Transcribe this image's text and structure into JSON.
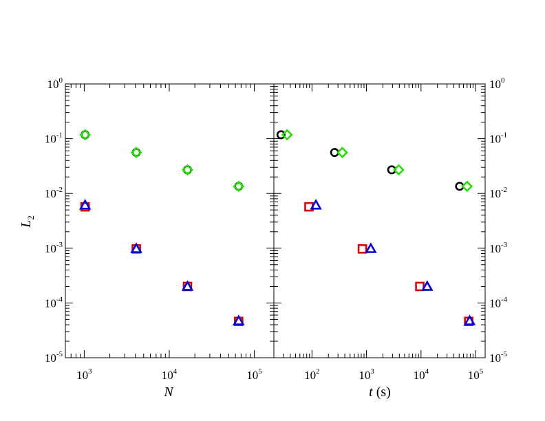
{
  "colors": {
    "black": "#000000",
    "red": "#e00000",
    "green": "#22e000",
    "blue": "#0000e0"
  },
  "chart_data": [
    {
      "type": "scatter",
      "panel": "left",
      "xscale": "log",
      "yscale": "log",
      "xlim": [
        600,
        170000
      ],
      "ylim": [
        1e-05,
        1
      ],
      "xlabel": {
        "var": "N",
        "unit": ""
      },
      "ylabel": {
        "var": "L",
        "sub": "2"
      },
      "xticks": [
        {
          "value": 1000,
          "base": "10",
          "exp": "3"
        },
        {
          "value": 10000,
          "base": "10",
          "exp": "4"
        },
        {
          "value": 100000,
          "base": "10",
          "exp": "5"
        }
      ],
      "yticks": [
        {
          "value": 1e-05,
          "base": "10",
          "exp": "-5"
        },
        {
          "value": 0.0001,
          "base": "10",
          "exp": "-4"
        },
        {
          "value": 0.001,
          "base": "10",
          "exp": "-3"
        },
        {
          "value": 0.01,
          "base": "10",
          "exp": "-2"
        },
        {
          "value": 0.1,
          "base": "10",
          "exp": "-1"
        },
        {
          "value": 1,
          "base": "10",
          "exp": "0"
        }
      ],
      "series": [
        {
          "marker": "circle",
          "color": "#000000",
          "points": [
            [
              1024,
              0.118
            ],
            [
              4096,
              0.056
            ],
            [
              16384,
              0.027
            ],
            [
              65536,
              0.0135
            ]
          ]
        },
        {
          "marker": "diamond",
          "color": "#22e000",
          "points": [
            [
              1024,
              0.118
            ],
            [
              4096,
              0.056
            ],
            [
              16384,
              0.027
            ],
            [
              65536,
              0.0135
            ]
          ]
        },
        {
          "marker": "square",
          "color": "#e00000",
          "points": [
            [
              1024,
              0.0057
            ],
            [
              4096,
              0.00097
            ],
            [
              16384,
              0.0002
            ],
            [
              65536,
              4.6e-05
            ]
          ]
        },
        {
          "marker": "triangle",
          "color": "#0000e0",
          "points": [
            [
              1024,
              0.0061
            ],
            [
              4096,
              0.00098
            ],
            [
              16384,
              0.0002
            ],
            [
              65536,
              4.7e-05
            ]
          ]
        }
      ]
    },
    {
      "type": "scatter",
      "panel": "right",
      "xscale": "log",
      "yscale": "log",
      "xlim": [
        20,
        150000
      ],
      "ylim": [
        1e-05,
        1
      ],
      "xlabel": {
        "var": "t",
        "unit": " (s)"
      },
      "ylabel": {
        "var": "",
        "sub": ""
      },
      "xticks": [
        {
          "value": 100,
          "base": "10",
          "exp": "2"
        },
        {
          "value": 1000,
          "base": "10",
          "exp": "3"
        },
        {
          "value": 10000,
          "base": "10",
          "exp": "4"
        },
        {
          "value": 100000,
          "base": "10",
          "exp": "5"
        }
      ],
      "yticks": [
        {
          "value": 1e-05,
          "base": "10",
          "exp": "-5"
        },
        {
          "value": 0.0001,
          "base": "10",
          "exp": "-4"
        },
        {
          "value": 0.001,
          "base": "10",
          "exp": "-3"
        },
        {
          "value": 0.01,
          "base": "10",
          "exp": "-2"
        },
        {
          "value": 0.1,
          "base": "10",
          "exp": "-1"
        },
        {
          "value": 1,
          "base": "10",
          "exp": "0"
        }
      ],
      "series": [
        {
          "marker": "circle",
          "color": "#000000",
          "points": [
            [
              27,
              0.118
            ],
            [
              260,
              0.056
            ],
            [
              2900,
              0.027
            ],
            [
              51000,
              0.0135
            ]
          ]
        },
        {
          "marker": "diamond",
          "color": "#22e000",
          "points": [
            [
              35,
              0.118
            ],
            [
              360,
              0.056
            ],
            [
              3900,
              0.027
            ],
            [
              70000,
              0.0135
            ]
          ]
        },
        {
          "marker": "square",
          "color": "#e00000",
          "points": [
            [
              88,
              0.0057
            ],
            [
              840,
              0.00097
            ],
            [
              9500,
              0.0002
            ],
            [
              75000,
              4.6e-05
            ]
          ]
        },
        {
          "marker": "triangle",
          "color": "#0000e0",
          "points": [
            [
              118,
              0.0061
            ],
            [
              1200,
              0.00098
            ],
            [
              13000,
              0.0002
            ],
            [
              78000,
              4.7e-05
            ]
          ]
        }
      ]
    }
  ]
}
